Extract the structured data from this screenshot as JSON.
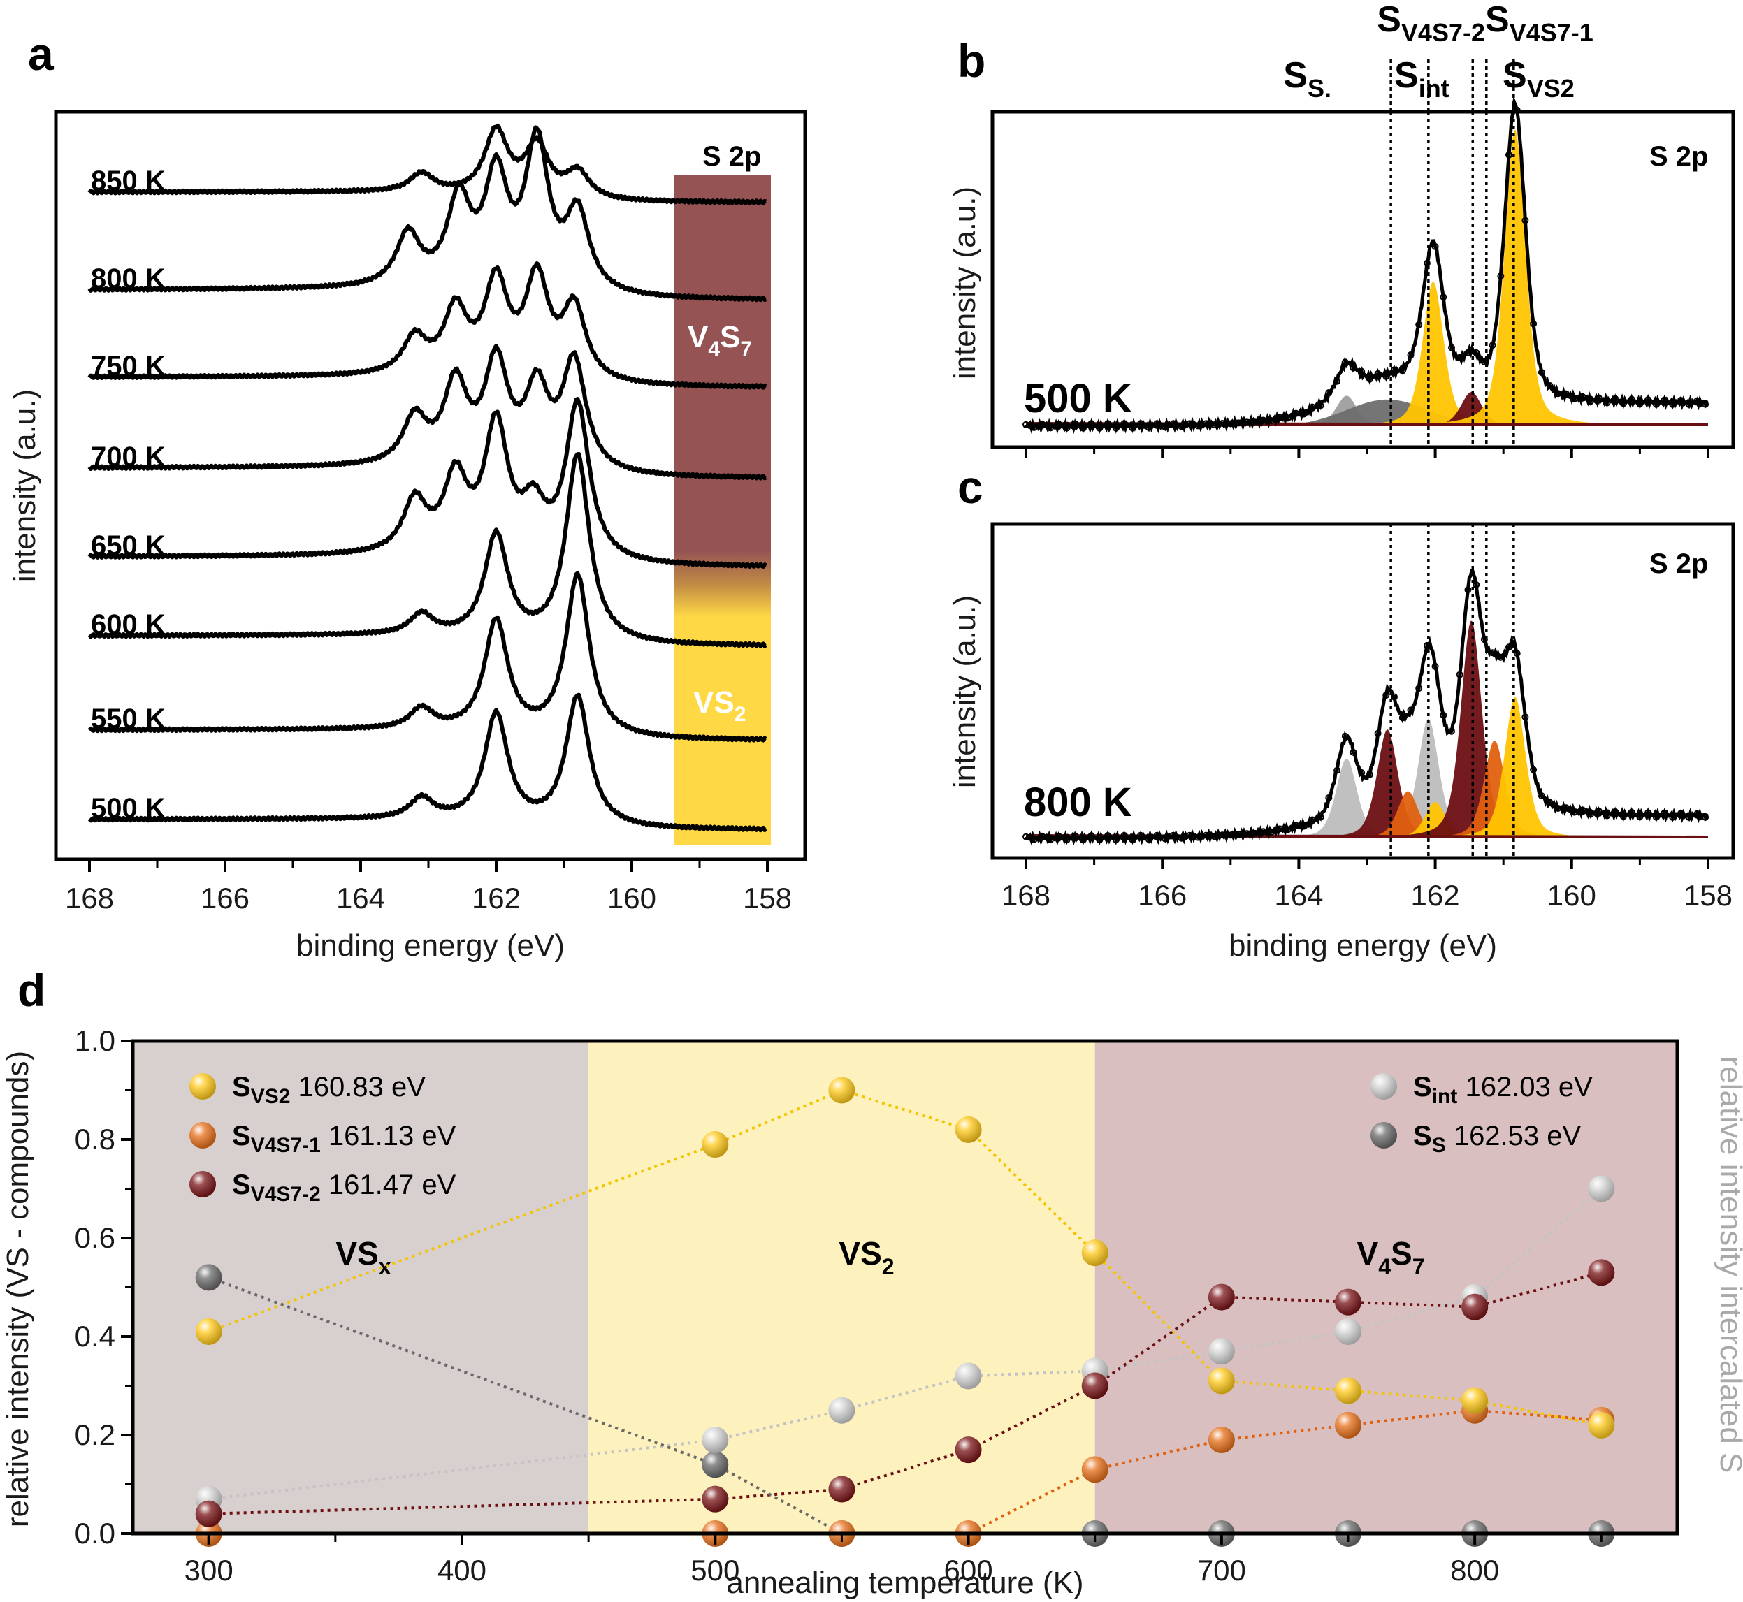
{
  "chart_data": [
    {
      "panel": "a",
      "type": "line",
      "xlabel": "binding energy (eV)",
      "ylabel": "intensity (a.u.)",
      "xlim": [
        168,
        158
      ],
      "xticks": [
        168,
        166,
        164,
        162,
        160,
        158
      ],
      "label": "S 2p",
      "band": {
        "top": "V4S7",
        "bottom": "VS2",
        "top_color": "#955353",
        "bottom_color": "#ffd945"
      },
      "series": [
        {
          "name": "850 K",
          "peaks": [
            [
              163.1,
              0.18
            ],
            [
              162.0,
              0.62
            ],
            [
              161.4,
              0.5
            ],
            [
              160.8,
              0.26
            ]
          ]
        },
        {
          "name": "800 K",
          "peaks": [
            [
              163.3,
              0.5
            ],
            [
              162.55,
              0.82
            ],
            [
              162.0,
              1.05
            ],
            [
              161.4,
              1.4
            ],
            [
              160.8,
              0.75
            ]
          ]
        },
        {
          "name": "750 K",
          "peaks": [
            [
              163.2,
              0.35
            ],
            [
              162.6,
              0.62
            ],
            [
              162.0,
              0.9
            ],
            [
              161.4,
              0.95
            ],
            [
              160.85,
              0.7
            ]
          ]
        },
        {
          "name": "700 K",
          "peaks": [
            [
              163.2,
              0.45
            ],
            [
              162.6,
              0.78
            ],
            [
              162.0,
              1.0
            ],
            [
              161.4,
              0.75
            ],
            [
              160.85,
              1.05
            ]
          ]
        },
        {
          "name": "650 K",
          "peaks": [
            [
              163.2,
              0.5
            ],
            [
              162.6,
              0.72
            ],
            [
              162.0,
              1.25
            ],
            [
              161.45,
              0.45
            ],
            [
              160.8,
              1.5
            ]
          ]
        },
        {
          "name": "600 K",
          "peaks": [
            [
              163.1,
              0.2
            ],
            [
              162.0,
              1.0
            ],
            [
              160.8,
              1.8
            ]
          ]
        },
        {
          "name": "550 K",
          "peaks": [
            [
              163.1,
              0.2
            ],
            [
              162.0,
              1.08
            ],
            [
              160.8,
              1.55
            ]
          ]
        },
        {
          "name": "500 K",
          "peaks": [
            [
              163.1,
              0.2
            ],
            [
              162.0,
              1.05
            ],
            [
              160.8,
              1.25
            ]
          ]
        }
      ],
      "series_labels": {
        "V4S7": "V",
        "sub4": "4",
        "S": "S",
        "sub7": "7",
        "VS2": "VS",
        "sub2": "2"
      }
    },
    {
      "panel": "b",
      "type": "line",
      "title": "500 K",
      "ylabel": "intensity (a.u.)",
      "xlim": [
        168,
        158
      ],
      "label": "S 2p",
      "peak_lines_ev": [
        162.65,
        162.1,
        161.45,
        161.25,
        160.85
      ],
      "components": [
        {
          "name": "S_S",
          "center": 163.3,
          "height": 0.08,
          "color": "#9e9e9e"
        },
        {
          "name": "S_S broad",
          "center": 162.7,
          "height": 0.07,
          "color": "#6e6e6e"
        },
        {
          "name": "S_int",
          "center": 162.03,
          "height": 0.38,
          "color": "#ffc400"
        },
        {
          "name": "S_V4S7-2",
          "center": 161.47,
          "height": 0.09,
          "color": "#6b0f12"
        },
        {
          "name": "S_VS2",
          "center": 160.83,
          "height": 0.78,
          "color": "#ffc400"
        }
      ]
    },
    {
      "panel": "c",
      "type": "line",
      "title": "800 K",
      "xlabel": "binding energy (eV)",
      "ylabel": "intensity (a.u.)",
      "xlim": [
        168,
        158
      ],
      "xticks": [
        168,
        166,
        164,
        162,
        160,
        158
      ],
      "label": "S 2p",
      "peak_lines_ev": [
        162.65,
        162.1,
        161.45,
        161.25,
        160.85
      ],
      "components": [
        {
          "name": "S_S",
          "center": 163.3,
          "height": 0.22,
          "color": "#b5b5b5"
        },
        {
          "name": "S_int",
          "center": 162.1,
          "height": 0.33,
          "color": "#b5b5b5"
        },
        {
          "name": "S_V4S7-2 a",
          "center": 162.7,
          "height": 0.3,
          "color": "#6b0f12"
        },
        {
          "name": "S_V4S7-1 a",
          "center": 162.4,
          "height": 0.13,
          "color": "#e06010"
        },
        {
          "name": "S_VS2 a",
          "center": 162.0,
          "height": 0.1,
          "color": "#ffc400"
        },
        {
          "name": "S_V4S7-2",
          "center": 161.47,
          "height": 0.6,
          "color": "#6b0f12"
        },
        {
          "name": "S_V4S7-1",
          "center": 161.13,
          "height": 0.27,
          "color": "#e06010"
        },
        {
          "name": "S_VS2",
          "center": 160.83,
          "height": 0.39,
          "color": "#ffc400"
        }
      ]
    },
    {
      "panel": "d",
      "type": "scatter",
      "xlabel": "annealing temperature (K)",
      "ylabel": "relative intensity (VS - compounds)",
      "ylabel_right": "relative intensity intercalated S",
      "xlim": [
        270,
        880
      ],
      "ylim": [
        0,
        1.0
      ],
      "xticks": [
        300,
        400,
        500,
        600,
        700,
        800
      ],
      "yticks": [
        "0.0",
        "0.2",
        "0.4",
        "0.6",
        "0.8",
        "1.0"
      ],
      "regions": [
        {
          "label": "VS",
          "sub": "x",
          "from": 270,
          "to": 450,
          "color": "#d8d0cf"
        },
        {
          "label": "VS",
          "sub": "2",
          "from": 450,
          "to": 650,
          "color": "#fdf1bd"
        },
        {
          "label": "V",
          "sub": "4",
          "label2": "S",
          "sub2": "7",
          "from": 650,
          "to": 880,
          "color": "#d9bfbf"
        }
      ],
      "series": [
        {
          "name": "S",
          "sub": "VS2",
          "energy": "160.83 eV",
          "color": "#ffc91a",
          "x": [
            300,
            500,
            550,
            600,
            650,
            700,
            750,
            800,
            850
          ],
          "y": [
            0.41,
            0.79,
            0.9,
            0.82,
            0.57,
            0.31,
            0.29,
            0.27,
            0.22
          ]
        },
        {
          "name": "S",
          "sub": "V4S7-1",
          "energy": "161.13 eV",
          "color": "#e6701a",
          "x": [
            300,
            500,
            550,
            600,
            650,
            700,
            750,
            800,
            850
          ],
          "y": [
            0.0,
            0.0,
            0.0,
            0.0,
            0.13,
            0.19,
            0.22,
            0.25,
            0.23
          ]
        },
        {
          "name": "S",
          "sub": "V4S7-2",
          "energy": "161.47 eV",
          "color": "#7a1518",
          "x": [
            300,
            500,
            550,
            600,
            650,
            700,
            750,
            800,
            850
          ],
          "y": [
            0.04,
            0.07,
            0.09,
            0.17,
            0.3,
            0.48,
            0.47,
            0.46,
            0.53
          ]
        },
        {
          "name": "S",
          "sub": "int",
          "energy": "162.03 eV",
          "color": "#d2d2d2",
          "x": [
            300,
            500,
            550,
            600,
            650,
            700,
            750,
            800,
            850
          ],
          "y": [
            0.07,
            0.19,
            0.25,
            0.32,
            0.33,
            0.37,
            0.41,
            0.48,
            0.7
          ]
        },
        {
          "name": "S",
          "sub": "S",
          "energy": "162.53 eV",
          "color": "#6a6a6a",
          "x": [
            300,
            500,
            550,
            650,
            700,
            750,
            800,
            850
          ],
          "y": [
            0.52,
            0.14,
            0.0,
            0.0,
            0.0,
            0.0,
            0.0,
            0.0
          ]
        }
      ]
    }
  ],
  "panel_letters": {
    "a": "a",
    "b": "b",
    "c": "c",
    "d": "d"
  },
  "peak_labels": {
    "ss_main": "S",
    "ss_sub": "S.",
    "sint_main": "S",
    "sint_sub": "int",
    "v2_main": "S",
    "v2_sub": "V4S7-2",
    "v1_main": "S",
    "v1_sub": "V4S7-1",
    "vs2_main": "S",
    "vs2_sub": "VS2"
  }
}
